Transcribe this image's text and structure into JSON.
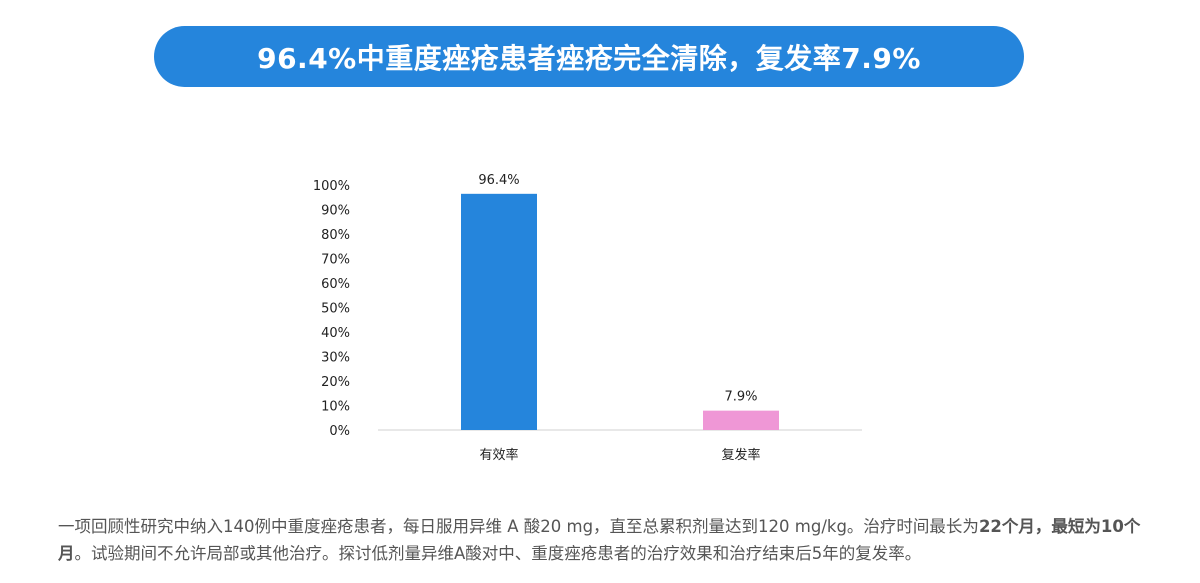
{
  "banner": {
    "title": "96.4%中重度痤疮患者痤疮完全清除，复发率7.9%"
  },
  "chart_data": {
    "type": "bar",
    "categories": [
      "有效率",
      "复发率"
    ],
    "values": [
      96.4,
      7.9
    ],
    "data_labels": [
      "96.4%",
      "7.9%"
    ],
    "colors": [
      "#2585dc",
      "#ef97d6"
    ],
    "ylim": [
      0,
      100
    ],
    "yticks": [
      "0%",
      "10%",
      "20%",
      "30%",
      "40%",
      "50%",
      "60%",
      "70%",
      "80%",
      "90%",
      "100%"
    ],
    "grid": false,
    "title": "",
    "xlabel": "",
    "ylabel": ""
  },
  "caption": {
    "part1": "一项回顾性研究中纳入140例中重度痤疮患者，每日服用异维 A 酸20 mg，直至总累积剂量达到120 mg/kg。治疗时间最长为",
    "bold1": "22个月，最短为10个月",
    "part2": "。试验期间不允许局部或其他治疗。探讨低剂量异维A酸对中、重度痤疮患者的治疗效果和治疗结束后5年的复发率。"
  }
}
